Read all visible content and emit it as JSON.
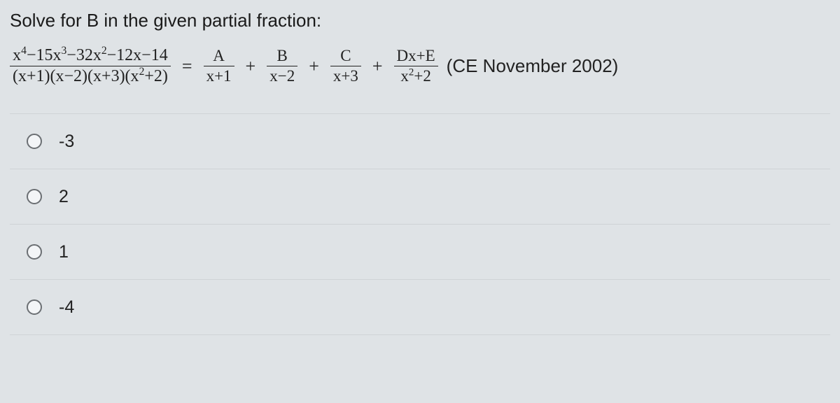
{
  "prompt": "Solve for B in the given partial fraction:",
  "equation": {
    "lhs_num_html": "x<sup>4</sup>−15x<sup>3</sup>−32x<sup>2</sup>−12x−14",
    "lhs_den_html": "(x+1)(x−2)(x+3)(x<sup>2</sup>+2)",
    "eq": "=",
    "terms": [
      {
        "num": "A",
        "den": "x+1"
      },
      {
        "num": "B",
        "den": "x−2"
      },
      {
        "num": "C",
        "den": "x+3"
      },
      {
        "num": "Dx+E",
        "den_html": "x<sup>2</sup>+2"
      }
    ],
    "plus": "+",
    "source": "(CE November 2002)"
  },
  "options": [
    {
      "label": "-3"
    },
    {
      "label": "2"
    },
    {
      "label": "1"
    },
    {
      "label": "-4"
    }
  ],
  "colors": {
    "background": "#dfe3e6",
    "text": "#222222",
    "divider": "#cfd3d6",
    "radio_border": "#6b6f73"
  },
  "typography": {
    "prompt_fontsize_pt": 20,
    "equation_fontsize_pt": 20,
    "option_fontsize_pt": 19
  }
}
